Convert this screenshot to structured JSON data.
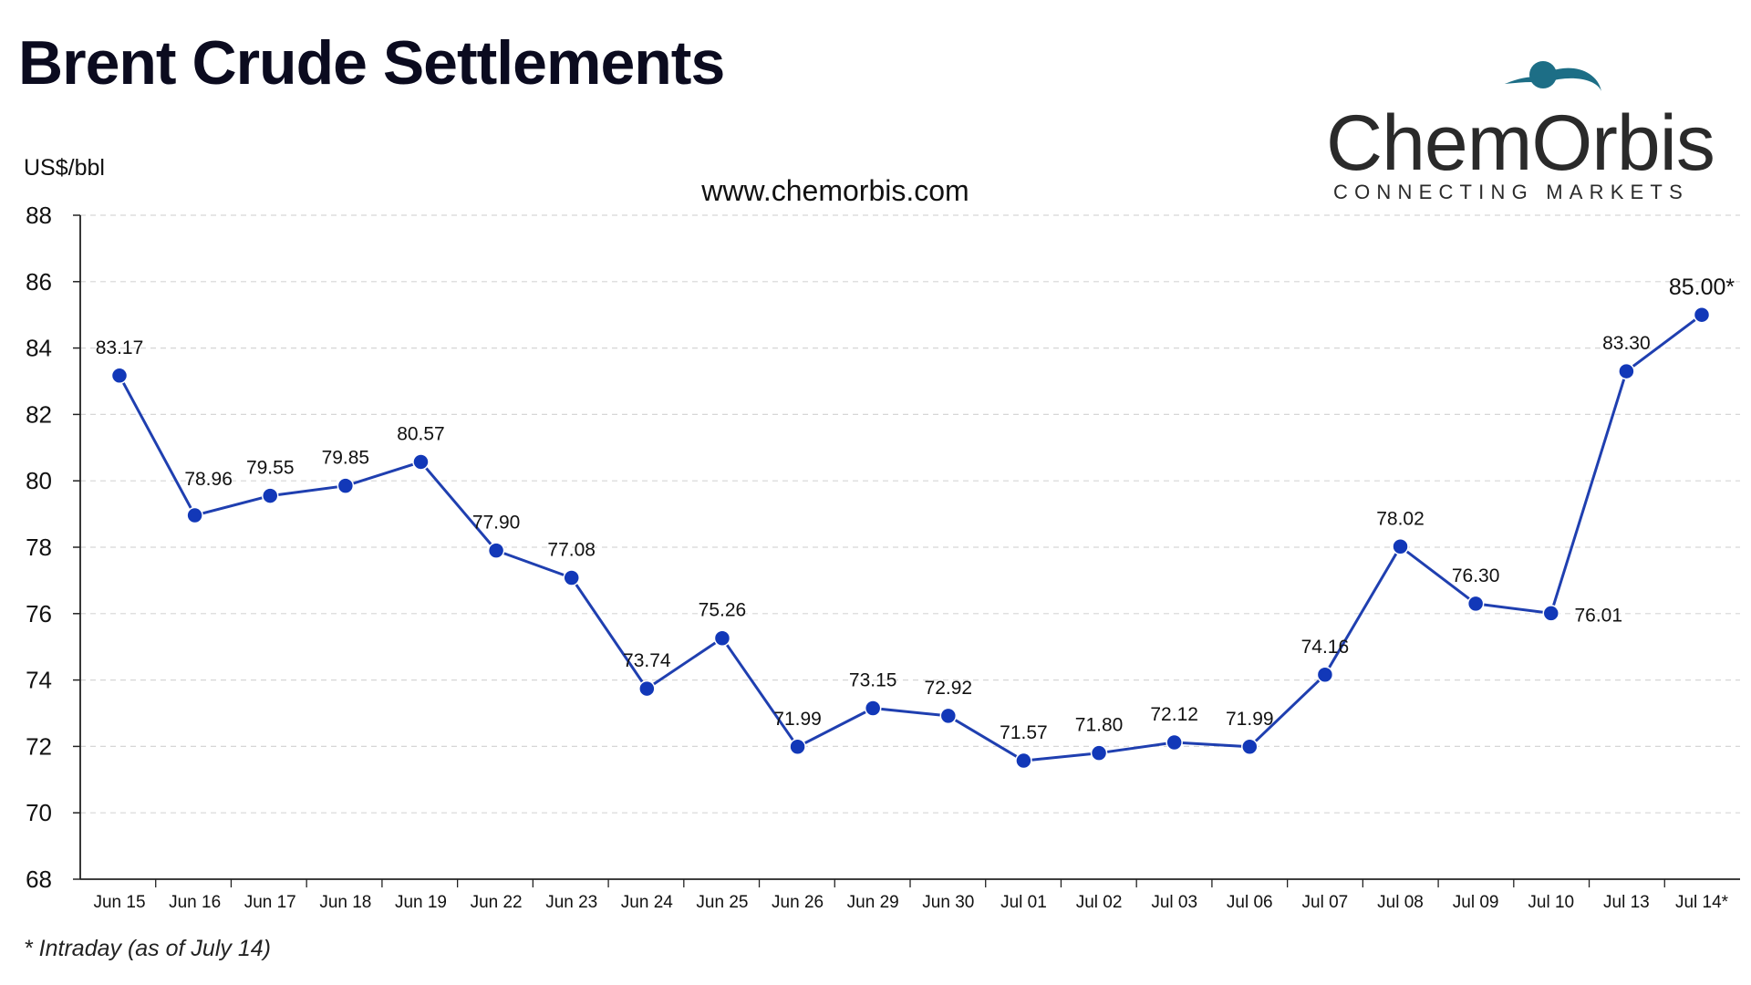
{
  "page_title": "Brent Crude Settlements",
  "logo": {
    "name": "ChemOrbis",
    "tagline": "CONNECTING MARKETS",
    "accent_color": "#1d6e86"
  },
  "watermark": "www.chemorbis.com",
  "footnote": "* Intraday (as of July 14)",
  "chart_data": {
    "type": "line",
    "title": "Brent Crude Settlements",
    "ylabel": "US$/bbl",
    "xlabel": "",
    "ylim": [
      68,
      88
    ],
    "yticks": [
      68,
      70,
      72,
      74,
      76,
      78,
      80,
      82,
      84,
      86,
      88
    ],
    "grid": "horizontal dashed",
    "line_color": "#1f3fb0",
    "marker_color": "#1238b8",
    "categories": [
      "Jun 15",
      "Jun 16",
      "Jun 17",
      "Jun 18",
      "Jun 19",
      "Jun 22",
      "Jun 23",
      "Jun 24",
      "Jun 25",
      "Jun 26",
      "Jun 29",
      "Jun 30",
      "Jul 01",
      "Jul 02",
      "Jul 03",
      "Jul 06",
      "Jul 07",
      "Jul 08",
      "Jul 09",
      "Jul 10",
      "Jul 13",
      "Jul 14*"
    ],
    "series": [
      {
        "values": [
          83.17,
          78.96,
          79.55,
          79.85,
          80.57,
          77.9,
          77.08,
          73.74,
          75.26,
          71.99,
          73.15,
          72.92,
          71.57,
          71.8,
          72.12,
          71.99,
          74.16,
          78.02,
          76.3,
          76.01,
          83.3,
          85.0
        ],
        "labels": [
          "83.17",
          "78.96",
          "79.55",
          "79.85",
          "80.57",
          "77.90",
          "77.08",
          "73.74",
          "75.26",
          "71.99",
          "73.15",
          "72.92",
          "71.57",
          "71.80",
          "72.12",
          "71.99",
          "74.16",
          "78.02",
          "76.30",
          "76.01",
          "83.30",
          "85.00*"
        ]
      }
    ]
  }
}
